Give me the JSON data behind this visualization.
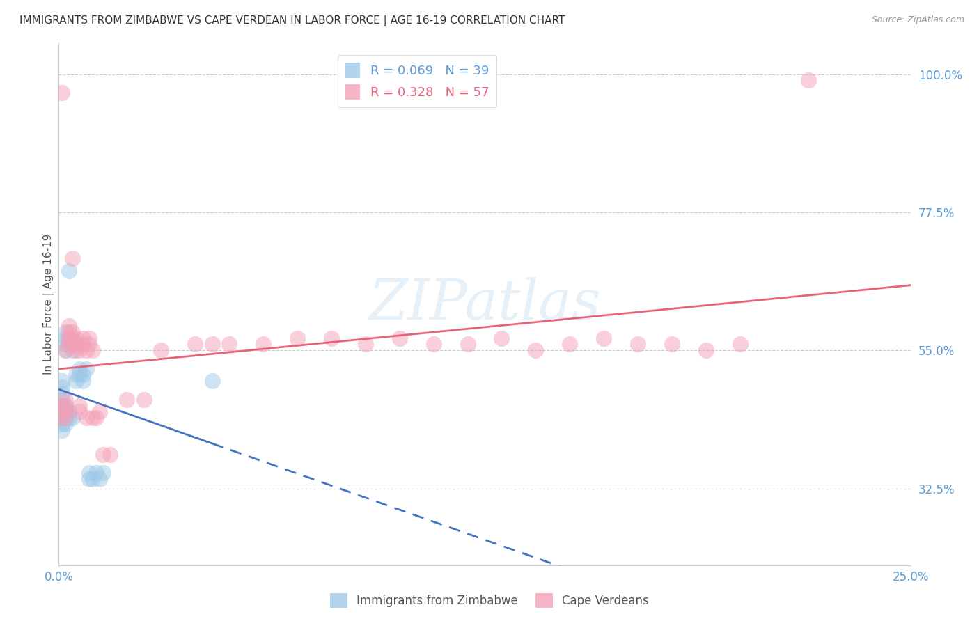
{
  "title": "IMMIGRANTS FROM ZIMBABWE VS CAPE VERDEAN IN LABOR FORCE | AGE 16-19 CORRELATION CHART",
  "source": "Source: ZipAtlas.com",
  "ylabel": "In Labor Force | Age 16-19",
  "xlim": [
    0.0,
    0.25
  ],
  "ylim": [
    0.2,
    1.05
  ],
  "yticks": [
    0.325,
    0.55,
    0.775,
    1.0
  ],
  "ytick_labels": [
    "32.5%",
    "55.0%",
    "77.5%",
    "100.0%"
  ],
  "xticks": [
    0.0,
    0.05,
    0.1,
    0.15,
    0.2,
    0.25
  ],
  "xtick_labels": [
    "0.0%",
    "",
    "",
    "",
    "",
    "25.0%"
  ],
  "legend_r1": "R = 0.069",
  "legend_n1": "N = 39",
  "legend_r2": "R = 0.328",
  "legend_n2": "N = 57",
  "zimbabwe_color": "#9ec8e8",
  "capeverde_color": "#f4a0b8",
  "trend_zimbabwe_color": "#4472c4",
  "trend_capeverde_color": "#e8637a",
  "background_color": "#ffffff",
  "grid_color": "#cccccc",
  "title_color": "#333333",
  "source_color": "#999999",
  "tick_color": "#5b9bd5",
  "watermark": "ZIPatlas",
  "zimbabwe_x": [
    0.001,
    0.001,
    0.001,
    0.001,
    0.001,
    0.001,
    0.001,
    0.001,
    0.001,
    0.002,
    0.002,
    0.002,
    0.002,
    0.002,
    0.002,
    0.002,
    0.002,
    0.003,
    0.003,
    0.003,
    0.003,
    0.003,
    0.004,
    0.004,
    0.004,
    0.005,
    0.005,
    0.006,
    0.006,
    0.007,
    0.007,
    0.008,
    0.009,
    0.009,
    0.01,
    0.011,
    0.012,
    0.013,
    0.045
  ],
  "zimbabwe_y": [
    0.44,
    0.45,
    0.46,
    0.47,
    0.48,
    0.49,
    0.5,
    0.43,
    0.42,
    0.55,
    0.56,
    0.57,
    0.58,
    0.43,
    0.44,
    0.45,
    0.46,
    0.68,
    0.56,
    0.57,
    0.44,
    0.45,
    0.55,
    0.56,
    0.44,
    0.51,
    0.5,
    0.51,
    0.52,
    0.5,
    0.51,
    0.52,
    0.34,
    0.35,
    0.34,
    0.35,
    0.34,
    0.35,
    0.5
  ],
  "capeverde_x": [
    0.001,
    0.001,
    0.001,
    0.001,
    0.002,
    0.002,
    0.002,
    0.002,
    0.002,
    0.003,
    0.003,
    0.003,
    0.003,
    0.004,
    0.004,
    0.004,
    0.004,
    0.005,
    0.005,
    0.005,
    0.006,
    0.006,
    0.006,
    0.007,
    0.007,
    0.008,
    0.008,
    0.009,
    0.009,
    0.01,
    0.01,
    0.011,
    0.012,
    0.013,
    0.015,
    0.02,
    0.025,
    0.03,
    0.04,
    0.045,
    0.05,
    0.06,
    0.07,
    0.08,
    0.09,
    0.1,
    0.11,
    0.12,
    0.13,
    0.14,
    0.15,
    0.16,
    0.17,
    0.18,
    0.19,
    0.2,
    0.22
  ],
  "capeverde_y": [
    0.44,
    0.45,
    0.46,
    0.97,
    0.44,
    0.45,
    0.46,
    0.47,
    0.55,
    0.56,
    0.57,
    0.58,
    0.59,
    0.56,
    0.57,
    0.58,
    0.7,
    0.56,
    0.55,
    0.57,
    0.45,
    0.46,
    0.55,
    0.56,
    0.57,
    0.44,
    0.55,
    0.56,
    0.57,
    0.44,
    0.55,
    0.44,
    0.45,
    0.38,
    0.38,
    0.47,
    0.47,
    0.55,
    0.56,
    0.56,
    0.56,
    0.56,
    0.57,
    0.57,
    0.56,
    0.57,
    0.56,
    0.56,
    0.57,
    0.55,
    0.56,
    0.57,
    0.56,
    0.56,
    0.55,
    0.56,
    0.99
  ]
}
